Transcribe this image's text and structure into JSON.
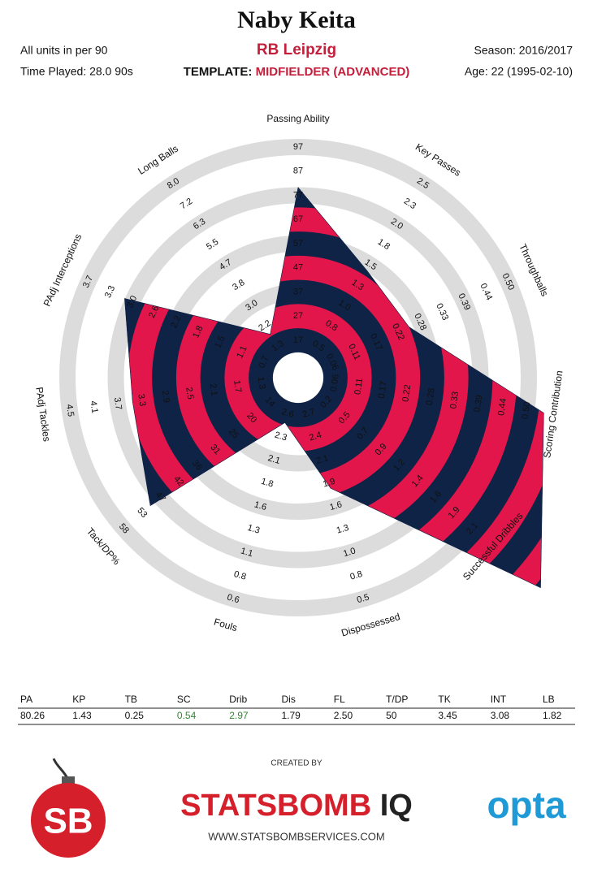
{
  "chart_data": {
    "type": "radar",
    "title": "Naby Keita",
    "subtitle": "RB Leipzig",
    "units_note": "All units in per 90",
    "time_played": "Time Played: 28.0 90s",
    "template_label": "TEMPLATE:",
    "template": "MIDFIELDER (ADVANCED)",
    "season": "Season: 2016/2017",
    "age": "Age: 22 (1995-02-10)",
    "colors": [
      "#0e2346",
      "#e3164b"
    ],
    "ring_color": "#dcdcdc",
    "axes": [
      {
        "name": "Passing Ability",
        "lim": [
          17,
          97
        ],
        "ticks": [
          17,
          27,
          37,
          47,
          57,
          67,
          77,
          87,
          97
        ]
      },
      {
        "name": "Key Passes",
        "lim": [
          0.5,
          2.5
        ],
        "ticks": [
          0.5,
          {
            "value": 0.75,
            "label": "0.8"
          },
          {
            "value": 1,
            "label": "1.0"
          },
          {
            "value": 1.25,
            "label": "1.3"
          },
          1.5,
          {
            "value": 1.75,
            "label": "1.8"
          },
          {
            "value": 2,
            "label": "2.0"
          },
          {
            "value": 2.25,
            "label": "2.3"
          },
          2.5
        ]
      },
      {
        "name": "Throughballs",
        "lim": [
          0.0556,
          0.5
        ],
        "ticks": [
          {
            "value": 0.0556,
            "label": "0.06"
          },
          {
            "value": 0.1111,
            "label": "0.11"
          },
          {
            "value": 0.1667,
            "label": "0.17"
          },
          {
            "value": 0.2222,
            "label": "0.22"
          },
          {
            "value": 0.2778,
            "label": "0.28"
          },
          {
            "value": 0.3333,
            "label": "0.33"
          },
          {
            "value": 0.3889,
            "label": "0.39"
          },
          {
            "value": 0.4444,
            "label": "0.44"
          },
          {
            "value": 0.5,
            "label": "0.50"
          }
        ]
      },
      {
        "name": "Scoring Contribution",
        "lim": [
          0.0556,
          0.5
        ],
        "ticks": [
          {
            "value": 0.0556,
            "label": "0.06"
          },
          {
            "value": 0.1111,
            "label": "0.11"
          },
          {
            "value": 0.1667,
            "label": "0.17"
          },
          {
            "value": 0.2222,
            "label": "0.22"
          },
          {
            "value": 0.2778,
            "label": "0.28"
          },
          {
            "value": 0.3333,
            "label": "0.33"
          },
          {
            "value": 0.3889,
            "label": "0.39"
          },
          {
            "value": 0.4444,
            "label": "0.44"
          },
          {
            "value": 0.5,
            "label": "0.50"
          }
        ]
      },
      {
        "name": "Successful Dribbles",
        "lim": [
          0.2333,
          2.1
        ],
        "ticks": [
          {
            "value": 0.2333,
            "label": "0.2"
          },
          {
            "value": 0.4667,
            "label": "0.5"
          },
          0.7,
          {
            "value": 0.9333,
            "label": "0.9"
          },
          {
            "value": 1.1667,
            "label": "1.2"
          },
          1.4,
          {
            "value": 1.6333,
            "label": "1.6"
          },
          {
            "value": 1.8667,
            "label": "1.9"
          },
          2.1
        ]
      },
      {
        "name": "Dispossessed",
        "lim": [
          2.66,
          0.5
        ],
        "ticks": [
          {
            "value": 2.66,
            "label": "2.7"
          },
          {
            "value": 2.39,
            "label": "2.4"
          },
          {
            "value": 2.12,
            "label": "2.1"
          },
          {
            "value": 1.85,
            "label": "1.9"
          },
          {
            "value": 1.58,
            "label": "1.6"
          },
          {
            "value": 1.31,
            "label": "1.3"
          },
          {
            "value": 1.04,
            "label": "1.0"
          },
          {
            "value": 0.77,
            "label": "0.8"
          },
          0.5
        ]
      },
      {
        "name": "Fouls",
        "lim": [
          2.6,
          0.56
        ],
        "ticks": [
          2.6,
          {
            "value": 2.345,
            "label": "2.3"
          },
          {
            "value": 2.09,
            "label": "2.1"
          },
          {
            "value": 1.835,
            "label": "1.8"
          },
          {
            "value": 1.58,
            "label": "1.6"
          },
          {
            "value": 1.325,
            "label": "1.3"
          },
          {
            "value": 1.07,
            "label": "1.1"
          },
          {
            "value": 0.815,
            "label": "0.8"
          },
          {
            "value": 0.56,
            "label": "0.6"
          }
        ]
      },
      {
        "name": "Tack/DP%",
        "lim": [
          14,
          58
        ],
        "ticks": [
          14,
          {
            "value": 19.5,
            "label": "20"
          },
          25,
          {
            "value": 30.5,
            "label": "31"
          },
          36,
          {
            "value": 41.5,
            "label": "42"
          },
          47,
          {
            "value": 52.5,
            "label": "53"
          },
          58
        ]
      },
      {
        "name": "PAdj Tackles",
        "lim": [
          1.3,
          4.5
        ],
        "ticks": [
          1.3,
          1.7,
          2.1,
          2.5,
          2.9,
          3.3,
          3.7,
          4.1,
          4.5
        ]
      },
      {
        "name": "PAdj Interceptions",
        "lim": [
          0.7,
          3.7
        ],
        "ticks": [
          0.7,
          {
            "value": 1.075,
            "label": "1.1"
          },
          {
            "value": 1.45,
            "label": "1.5"
          },
          {
            "value": 1.825,
            "label": "1.8"
          },
          2.2,
          {
            "value": 2.575,
            "label": "2.6"
          },
          {
            "value": 2.95,
            "label": "3.0"
          },
          {
            "value": 3.325,
            "label": "3.3"
          },
          3.7
        ]
      },
      {
        "name": "Long Balls",
        "lim": [
          1.33,
          8.002
        ],
        "ticks": [
          {
            "value": 1.33,
            "label": "1.3"
          },
          {
            "value": 2.164,
            "label": "2.2"
          },
          {
            "value": 2.998,
            "label": "3.0"
          },
          {
            "value": 3.832,
            "label": "3.8"
          },
          {
            "value": 4.666,
            "label": "4.7"
          },
          {
            "value": 5.5,
            "label": "5.5"
          },
          {
            "value": 6.334,
            "label": "6.3"
          },
          {
            "value": 7.168,
            "label": "7.2"
          },
          {
            "value": 8.002,
            "label": "8.0"
          }
        ]
      }
    ],
    "stat_abbreviations": [
      "PA",
      "KP",
      "TB",
      "SC",
      "Drib",
      "Dis",
      "FL",
      "T/DP",
      "TK",
      "INT",
      "LB"
    ],
    "values": [
      80.26,
      1.43,
      0.25,
      0.54,
      2.97,
      1.79,
      2.5,
      50,
      3.45,
      3.08,
      1.82
    ],
    "value_labels": [
      "80.26",
      "1.43",
      "0.25",
      "0.54",
      "2.97",
      "1.79",
      "2.50",
      "50",
      "3.45",
      "3.08",
      "1.82"
    ],
    "highlight_color": "#2e8b2e",
    "credit": "CREATED BY",
    "brand": "STATSBOMB",
    "brand_suffix": "IQ",
    "logo": "SB",
    "partner": "opta",
    "url": "WWW.STATSBOMBSERVICES.COM"
  }
}
